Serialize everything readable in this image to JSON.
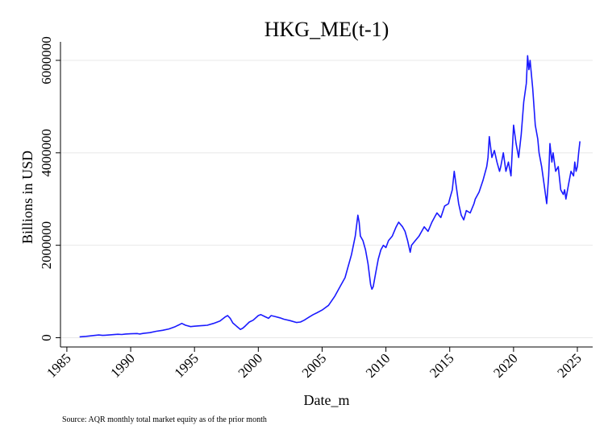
{
  "chart_data": {
    "type": "line",
    "title": "HKG_ME(t-1)",
    "xlabel": "Date_m",
    "ylabel": "Billions in USD",
    "note": "Source: AQR monthly total market equity as of the prior month",
    "xlim": [
      1984.5,
      2026.2
    ],
    "ylim": [
      -200000,
      6400000
    ],
    "x_ticks": [
      1985,
      1990,
      1995,
      2000,
      2005,
      2010,
      2015,
      2020,
      2025
    ],
    "x_tick_labels": [
      "1985",
      "1990",
      "1995",
      "2000",
      "2005",
      "2010",
      "2015",
      "2020",
      "2025"
    ],
    "y_ticks": [
      0,
      2000000,
      4000000,
      6000000
    ],
    "y_tick_labels": [
      "0",
      "2000000",
      "4000000",
      "6000000"
    ],
    "grid": "horizontal",
    "legend": "none",
    "line_color": "#1a1aff",
    "series": [
      {
        "x": [
          1986.0,
          1986.5,
          1987.0,
          1987.5,
          1987.8,
          1988.0,
          1988.5,
          1989.0,
          1989.3,
          1989.6,
          1990.0,
          1990.5,
          1990.7,
          1991.0,
          1991.5,
          1992.0,
          1992.5,
          1993.0,
          1993.5,
          1993.8,
          1994.0,
          1994.3,
          1994.7,
          1995.0,
          1995.5,
          1996.0,
          1996.5,
          1997.0,
          1997.4,
          1997.6,
          1997.8,
          1998.0,
          1998.3,
          1998.6,
          1998.8,
          1999.0,
          1999.3,
          1999.6,
          2000.0,
          2000.2,
          2000.5,
          2000.8,
          2001.0,
          2001.3,
          2001.7,
          2002.0,
          2002.5,
          2003.0,
          2003.3,
          2003.6,
          2004.0,
          2004.3,
          2004.6,
          2005.0,
          2005.5,
          2006.0,
          2006.4,
          2006.8,
          2007.0,
          2007.3,
          2007.6,
          2007.8,
          2007.9,
          2008.0,
          2008.2,
          2008.4,
          2008.6,
          2008.8,
          2008.9,
          2009.0,
          2009.2,
          2009.4,
          2009.6,
          2009.8,
          2010.0,
          2010.2,
          2010.5,
          2010.8,
          2011.0,
          2011.3,
          2011.5,
          2011.7,
          2011.9,
          2012.0,
          2012.3,
          2012.6,
          2012.9,
          2013.0,
          2013.3,
          2013.6,
          2013.9,
          2014.0,
          2014.3,
          2014.6,
          2014.9,
          2015.0,
          2015.2,
          2015.35,
          2015.5,
          2015.7,
          2015.9,
          2016.1,
          2016.3,
          2016.6,
          2016.9,
          2017.0,
          2017.3,
          2017.6,
          2017.9,
          2018.0,
          2018.1,
          2018.3,
          2018.5,
          2018.7,
          2018.9,
          2019.0,
          2019.2,
          2019.4,
          2019.6,
          2019.8,
          2020.0,
          2020.2,
          2020.4,
          2020.6,
          2020.8,
          2021.0,
          2021.1,
          2021.2,
          2021.3,
          2021.5,
          2021.7,
          2021.9,
          2022.0,
          2022.2,
          2022.4,
          2022.6,
          2022.75,
          2022.85,
          2023.0,
          2023.1,
          2023.3,
          2023.5,
          2023.7,
          2023.9,
          2024.0,
          2024.1,
          2024.3,
          2024.5,
          2024.7,
          2024.8,
          2024.9,
          2025.0,
          2025.1,
          2025.2
        ],
        "y": [
          20000,
          30000,
          45000,
          60000,
          50000,
          55000,
          65000,
          75000,
          70000,
          80000,
          85000,
          90000,
          80000,
          95000,
          110000,
          140000,
          160000,
          190000,
          240000,
          280000,
          310000,
          270000,
          240000,
          250000,
          260000,
          270000,
          310000,
          360000,
          450000,
          480000,
          420000,
          320000,
          250000,
          180000,
          210000,
          260000,
          340000,
          380000,
          480000,
          500000,
          460000,
          420000,
          480000,
          460000,
          430000,
          400000,
          370000,
          330000,
          340000,
          380000,
          450000,
          500000,
          540000,
          600000,
          700000,
          900000,
          1100000,
          1300000,
          1500000,
          1800000,
          2200000,
          2650000,
          2500000,
          2200000,
          2100000,
          1900000,
          1600000,
          1150000,
          1050000,
          1100000,
          1400000,
          1700000,
          1900000,
          2000000,
          1950000,
          2100000,
          2200000,
          2400000,
          2500000,
          2400000,
          2300000,
          2100000,
          1850000,
          2000000,
          2100000,
          2200000,
          2350000,
          2400000,
          2300000,
          2500000,
          2650000,
          2700000,
          2600000,
          2850000,
          2900000,
          3000000,
          3200000,
          3600000,
          3300000,
          2900000,
          2650000,
          2550000,
          2750000,
          2700000,
          2900000,
          3000000,
          3150000,
          3400000,
          3700000,
          3900000,
          4350000,
          3900000,
          4050000,
          3800000,
          3600000,
          3700000,
          4000000,
          3600000,
          3800000,
          3500000,
          4600000,
          4200000,
          3900000,
          4400000,
          5100000,
          5500000,
          6100000,
          5800000,
          6000000,
          5400000,
          4600000,
          4300000,
          4000000,
          3700000,
          3300000,
          2900000,
          3500000,
          4200000,
          3800000,
          4000000,
          3600000,
          3700000,
          3200000,
          3100000,
          3200000,
          3000000,
          3300000,
          3600000,
          3500000,
          3800000,
          3600000,
          3700000,
          4000000,
          4250000
        ]
      }
    ]
  }
}
